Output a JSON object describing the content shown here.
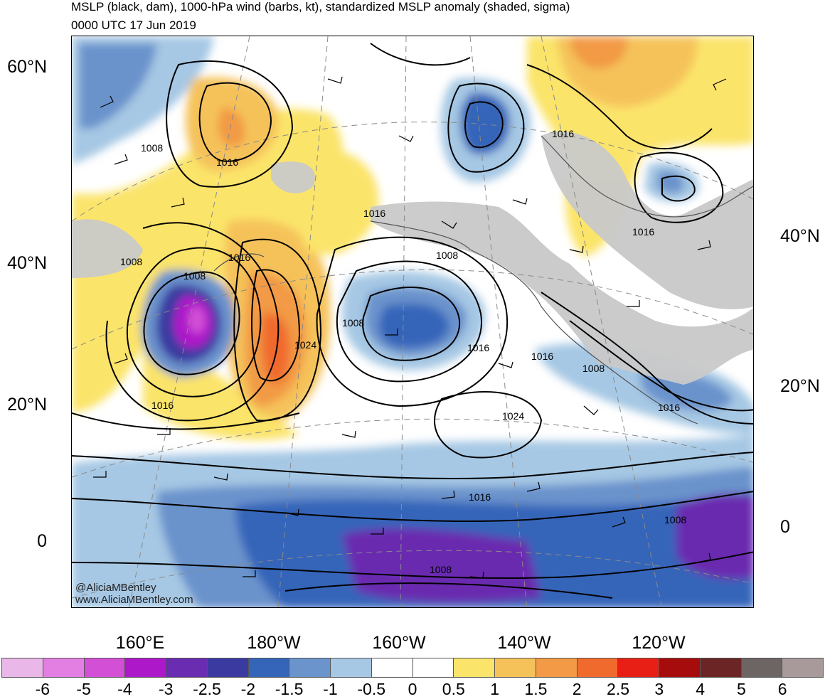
{
  "title": {
    "line1": "MSLP (black, dam), 1000-hPa wind (barbs, kt), standardized MSLP anomaly (shaded, sigma)",
    "line2": "0000 UTC 17 Jun 2019"
  },
  "axes": {
    "lat_left": [
      "60°N",
      "40°N",
      "20°N",
      "0"
    ],
    "lat_right": [
      "40°N",
      "20°N",
      "0"
    ],
    "lon_bottom": [
      "160°E",
      "180°W",
      "160°W",
      "140°W",
      "120°W"
    ]
  },
  "contour_labels": [
    "1008",
    "1016",
    "1008",
    "1016",
    "1016",
    "1008",
    "1024",
    "1016",
    "1016",
    "1008",
    "1016",
    "1016",
    "1024",
    "1016",
    "1008",
    "1016",
    "1008",
    "1016",
    "1008",
    "1008"
  ],
  "colorbar": {
    "colors": [
      "#e9b8e8",
      "#e37fe3",
      "#d34fd6",
      "#ad18c9",
      "#6a2cb0",
      "#3a3aa1",
      "#3465b9",
      "#6b93cc",
      "#a6c8e4",
      "#ffffff",
      "#ffffff",
      "#fbe46a",
      "#f5c25a",
      "#f29a45",
      "#f06a2e",
      "#e81f14",
      "#a70c0c",
      "#6c2525",
      "#6d6464",
      "#a89a9a"
    ],
    "labels": [
      "-6",
      "-5",
      "-4",
      "-3",
      "-2.5",
      "-2",
      "-1.5",
      "-1",
      "-0.5",
      "0",
      "0.5",
      "1",
      "1.5",
      "2",
      "2.5",
      "3",
      "4",
      "5",
      "6"
    ]
  },
  "credits": {
    "handle": "@AliciaMBentley",
    "url": "www.AliciaMBentley.com"
  }
}
